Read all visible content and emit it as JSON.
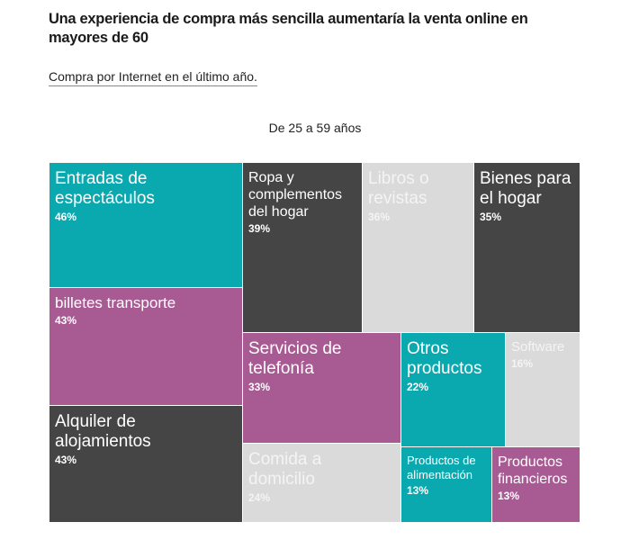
{
  "header": {
    "title": "Una experiencia de compra más sencilla aumentaría la venta online en mayores de 60",
    "subtitle": "Compra por Internet en el último año."
  },
  "colors": {
    "teal": "#0aa9b0",
    "purple": "#a85a93",
    "dark": "#454545",
    "light": "#dadada"
  },
  "chart_data": {
    "type": "treemap",
    "title": "Una experiencia de compra más sencilla aumentaría la venta online en mayores de 60",
    "subtitle": "Compra por Internet en el último año.",
    "group": "De 25 a 59 años",
    "unit": "%",
    "items": [
      {
        "name": "Entradas de espectáculos",
        "value": 46,
        "label": "46%",
        "color": "teal"
      },
      {
        "name": "billetes transporte",
        "value": 43,
        "label": "43%",
        "color": "purple"
      },
      {
        "name": "Alquiler de alojamientos",
        "value": 43,
        "label": "43%",
        "color": "dark"
      },
      {
        "name": "Ropa y complementos del hogar",
        "value": 39,
        "label": "39%",
        "color": "dark"
      },
      {
        "name": "Libros o revistas",
        "value": 36,
        "label": "36%",
        "color": "light"
      },
      {
        "name": "Bienes para el hogar",
        "value": 35,
        "label": "35%",
        "color": "dark"
      },
      {
        "name": "Servicios de telefonía",
        "value": 33,
        "label": "33%",
        "color": "purple"
      },
      {
        "name": "Comida a domicilio",
        "value": 24,
        "label": "24%",
        "color": "light"
      },
      {
        "name": "Otros productos",
        "value": 22,
        "label": "22%",
        "color": "teal"
      },
      {
        "name": "Software",
        "value": 16,
        "label": "16%",
        "color": "light"
      },
      {
        "name": "Productos de alimentación",
        "value": 13,
        "label": "13%",
        "color": "teal"
      },
      {
        "name": "Productos financieros",
        "value": 13,
        "label": "13%",
        "color": "purple"
      }
    ]
  }
}
